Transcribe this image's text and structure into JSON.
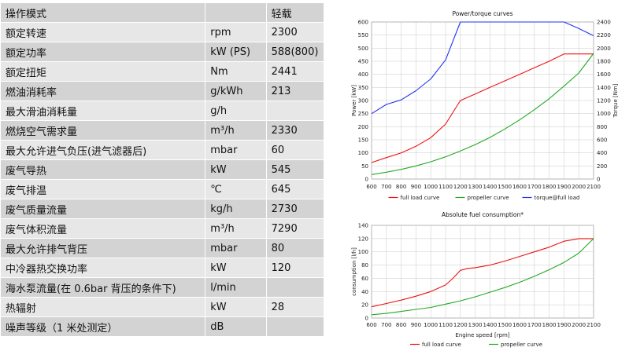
{
  "spec_table": {
    "rows": [
      {
        "name": "操作模式",
        "unit": "",
        "value": "轻载"
      },
      {
        "name": "额定转速",
        "unit": "rpm",
        "value": "2300"
      },
      {
        "name": "额定功率",
        "unit": "kW (PS)",
        "value": "588(800)"
      },
      {
        "name": "额定扭矩",
        "unit": "Nm",
        "value": "2441"
      },
      {
        "name": "燃油消耗率",
        "unit": "g/kWh",
        "value": "213"
      },
      {
        "name": "最大滑油消耗量",
        "unit": "g/h",
        "value": ""
      },
      {
        "name": "燃烧空气需求量",
        "unit": "m³/h",
        "value": "2330"
      },
      {
        "name": "最大允许进气负压(进气滤器后)",
        "unit": "mbar",
        "value": "60"
      },
      {
        "name": "废气导热",
        "unit": "kW",
        "value": "545"
      },
      {
        "name": "废气排温",
        "unit": "℃",
        "value": "645"
      },
      {
        "name": "废气质量流量",
        "unit": "kg/h",
        "value": "2730"
      },
      {
        "name": "废气体积流量",
        "unit": "m³/h",
        "value": "7290"
      },
      {
        "name": "最大允许排气背压",
        "unit": "mbar",
        "value": "80"
      },
      {
        "name": "中冷器热交换功率",
        "unit": "kW",
        "value": "120"
      },
      {
        "name": "海水泵流量(在 0.6bar 背压的条件下)",
        "unit": "l/min",
        "value": ""
      },
      {
        "name": "热辐射",
        "unit": "kW",
        "value": "28"
      },
      {
        "name": "噪声等级（1 米处测定）",
        "unit": "dB",
        "value": ""
      }
    ]
  },
  "chart_data": [
    {
      "type": "line",
      "title": "Power/torque curves",
      "xlabel": "",
      "ylabel": "Power [kW]",
      "y2label": "Torque [Nm]",
      "xlim": [
        600,
        2100
      ],
      "ylim": [
        0,
        600
      ],
      "y2lim": [
        0,
        2400
      ],
      "x_ticks": [
        600,
        700,
        800,
        900,
        1000,
        1100,
        1200,
        1300,
        1400,
        1500,
        1600,
        1700,
        1800,
        1900,
        2000,
        2100
      ],
      "y_ticks": [
        0,
        50,
        100,
        150,
        200,
        250,
        300,
        350,
        400,
        450,
        500,
        550,
        600
      ],
      "y2_ticks": [
        0,
        200,
        400,
        600,
        800,
        1000,
        1200,
        1400,
        1600,
        1800,
        2000,
        2200,
        2400
      ],
      "grid": true,
      "legend_position": "bottom",
      "series": [
        {
          "name": "full load curve",
          "color": "#ee1111",
          "axis": "left",
          "x": [
            600,
            700,
            800,
            900,
            1000,
            1100,
            1200,
            1300,
            1400,
            1500,
            1600,
            1700,
            1800,
            1900,
            2000,
            2100
          ],
          "y": [
            63,
            82,
            100,
            125,
            158,
            210,
            300,
            325,
            350,
            375,
            400,
            425,
            450,
            478,
            478,
            478
          ]
        },
        {
          "name": "propeller curve",
          "color": "#22aa22",
          "axis": "left",
          "x": [
            600,
            700,
            800,
            900,
            1000,
            1100,
            1200,
            1300,
            1400,
            1500,
            1600,
            1700,
            1800,
            1900,
            2000,
            2100
          ],
          "y": [
            17,
            26,
            37,
            50,
            66,
            85,
            107,
            131,
            159,
            191,
            226,
            265,
            307,
            355,
            405,
            480
          ]
        },
        {
          "name": "torque@full load",
          "color": "#2233ee",
          "axis": "right",
          "x": [
            600,
            700,
            800,
            900,
            1000,
            1100,
            1200,
            1300,
            1400,
            1500,
            1600,
            1700,
            1800,
            1900,
            2000,
            2100
          ],
          "y": [
            1000,
            1140,
            1210,
            1350,
            1530,
            1820,
            2400,
            2400,
            2400,
            2400,
            2400,
            2400,
            2400,
            2400,
            2300,
            2190
          ]
        }
      ]
    },
    {
      "type": "line",
      "title": "Absolute fuel consumption*",
      "xlabel": "Engine speed [rpm]",
      "ylabel": "consumption [l/h]",
      "xlim": [
        600,
        2100
      ],
      "ylim": [
        0,
        140
      ],
      "x_ticks": [
        600,
        700,
        800,
        900,
        1000,
        1100,
        1200,
        1300,
        1400,
        1500,
        1600,
        1700,
        1800,
        1900,
        2000,
        2100
      ],
      "y_ticks": [
        0,
        20,
        40,
        60,
        80,
        100,
        120,
        140
      ],
      "grid": true,
      "legend_position": "bottom",
      "series": [
        {
          "name": "full load curve",
          "color": "#ee1111",
          "x": [
            600,
            700,
            800,
            900,
            1000,
            1100,
            1150,
            1200,
            1250,
            1300,
            1400,
            1500,
            1600,
            1700,
            1800,
            1900,
            2000,
            2100
          ],
          "y": [
            17,
            22,
            27,
            33,
            40,
            50,
            60,
            72,
            75,
            76,
            80,
            86,
            93,
            100,
            107,
            116,
            120,
            120
          ]
        },
        {
          "name": "propeller curve",
          "color": "#22aa22",
          "x": [
            600,
            700,
            800,
            900,
            1000,
            1100,
            1200,
            1300,
            1400,
            1500,
            1600,
            1700,
            1800,
            1900,
            2000,
            2100
          ],
          "y": [
            5,
            7,
            10,
            13,
            16,
            21,
            26,
            32,
            39,
            46,
            54,
            63,
            73,
            84,
            98,
            120
          ]
        }
      ]
    }
  ]
}
